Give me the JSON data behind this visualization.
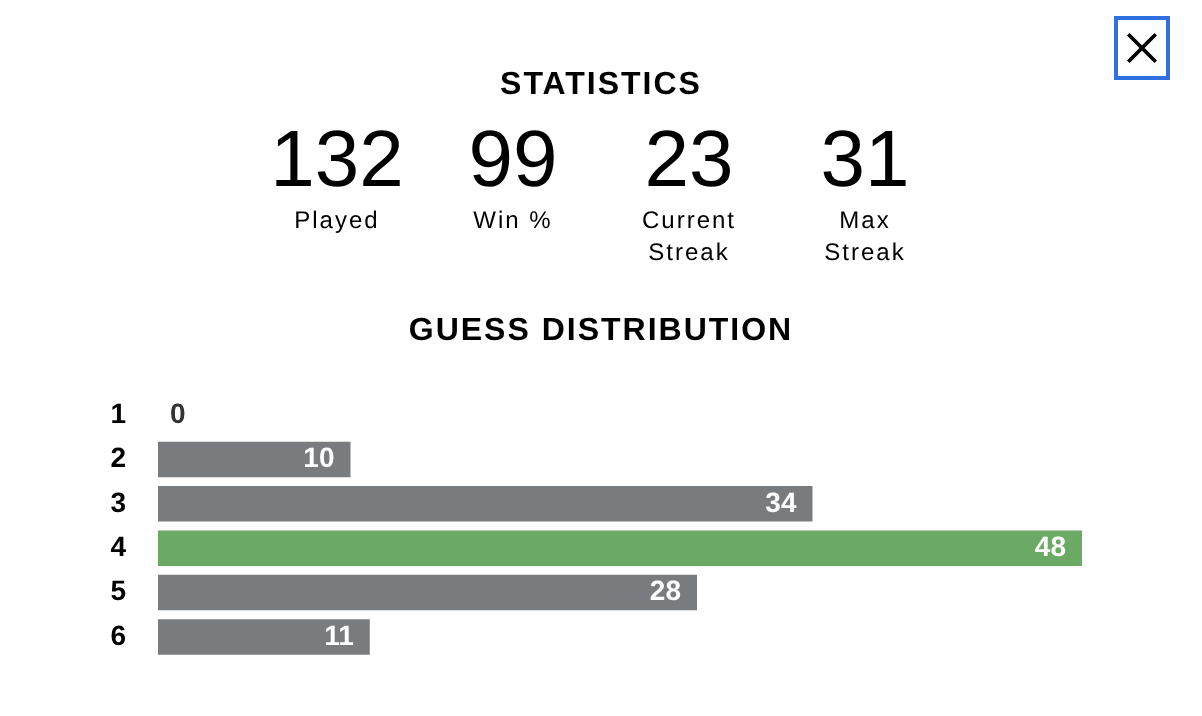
{
  "chart_data": [
    {
      "type": "other",
      "title": "STATISTICS",
      "categories": [
        "Played",
        "Win %",
        "Current Streak",
        "Max Streak"
      ],
      "values": [
        132,
        99,
        23,
        31
      ],
      "data_labels": true
    },
    {
      "type": "bar",
      "title": "GUESS DISTRIBUTION",
      "orientation": "horizontal",
      "categories": [
        "1",
        "2",
        "3",
        "4",
        "5",
        "6"
      ],
      "values": [
        0,
        10,
        34,
        48,
        28,
        11
      ],
      "colors": [
        "#787c7e",
        "#787c7e",
        "#787c7e",
        "#6aaa64",
        "#787c7e",
        "#787c7e"
      ],
      "xlim": [
        0,
        48
      ],
      "data_labels": true,
      "tick_labels": "y"
    }
  ]
}
